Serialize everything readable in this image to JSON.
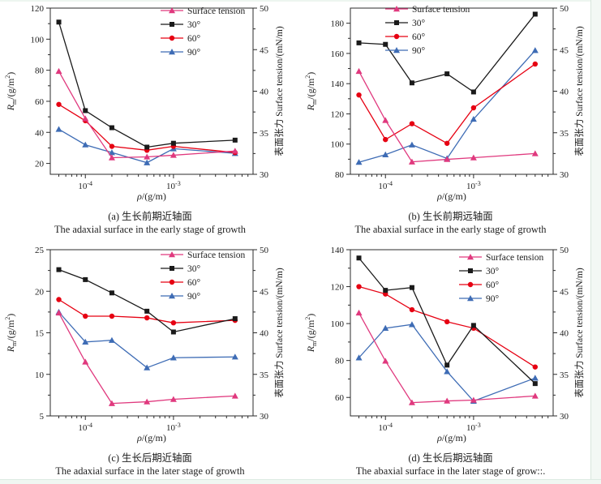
{
  "figure": {
    "x_range": [
      4e-05,
      0.008
    ],
    "x_ticks": [
      {
        "value": 0.0001,
        "base": "10",
        "exp": "-4"
      },
      {
        "value": 0.001,
        "base": "10",
        "exp": "-3"
      }
    ],
    "xlabel": {
      "var": "ρ",
      "rest": "/(g/m)"
    },
    "left_label": {
      "var": "R",
      "sub": "m",
      "mid": "/(g/m",
      "sup": "2",
      "end": ")"
    },
    "right_label": "表面张力 Surface tension/(mN/m)",
    "right_ticks": [
      30,
      35,
      40,
      45,
      50
    ],
    "right_range": [
      30,
      50
    ],
    "series_styles": {
      "surface_tension": {
        "color": "#E0397E",
        "marker": "triangle"
      },
      "deg30": {
        "color": "#1A1A1A",
        "marker": "square"
      },
      "deg60": {
        "color": "#E60012",
        "marker": "circle"
      },
      "deg90": {
        "color": "#3E6CB5",
        "marker": "triangle"
      }
    },
    "draw_order": [
      "deg90",
      "deg60",
      "surface_tension",
      "deg30"
    ],
    "legend": {
      "entries": [
        {
          "key": "surface_tension",
          "label": "Surface tension"
        },
        {
          "key": "deg30",
          "label": "30°"
        },
        {
          "key": "deg60",
          "label": "60°"
        },
        {
          "key": "deg90",
          "label": "90°"
        }
      ]
    }
  },
  "chart_data": [
    {
      "type": "line",
      "panel": "a",
      "title_zh": "(a) 生长前期近轴面",
      "title_en": "The adaxial surface in the early stage of growth",
      "x_scale": "log",
      "x": [
        5e-05,
        0.0001,
        0.0002,
        0.0005,
        0.001,
        0.005
      ],
      "left_ticks": [
        20,
        40,
        60,
        80,
        100,
        120
      ],
      "left_range": [
        13,
        120
      ],
      "legend_pos": {
        "x": 198,
        "y": 8
      },
      "series": {
        "surface_tension": {
          "axis": "right",
          "values": [
            42.4,
            36.7,
            32.0,
            32.1,
            32.3,
            32.8
          ]
        },
        "deg30": {
          "axis": "left",
          "values": [
            111,
            54,
            43,
            30.5,
            33,
            35
          ]
        },
        "deg60": {
          "axis": "left",
          "values": [
            58,
            47.5,
            31,
            28.5,
            31,
            27
          ]
        },
        "deg90": {
          "axis": "left",
          "values": [
            42,
            32,
            27,
            20.5,
            29.5,
            26.5
          ]
        }
      }
    },
    {
      "type": "line",
      "panel": "b",
      "title_zh": "(b) 生长前期远轴面",
      "title_en": "The abaxial surface in the early stage of growth",
      "x_scale": "log",
      "x": [
        5e-05,
        0.0001,
        0.0002,
        0.0005,
        0.001,
        0.005
      ],
      "left_ticks": [
        80,
        100,
        120,
        140,
        160,
        180
      ],
      "left_range": [
        80,
        190
      ],
      "legend_pos": {
        "x": 105,
        "y": 6
      },
      "series": {
        "surface_tension": {
          "axis": "right",
          "values": [
            42.4,
            36.5,
            31.5,
            31.8,
            32.0,
            32.5
          ]
        },
        "deg30": {
          "axis": "left",
          "values": [
            167,
            166,
            140.5,
            146.5,
            134.5,
            186
          ]
        },
        "deg60": {
          "axis": "left",
          "values": [
            132.5,
            103,
            113.5,
            100.5,
            124,
            153
          ]
        },
        "deg90": {
          "axis": "left",
          "values": [
            88,
            93,
            99.5,
            90.5,
            116.5,
            162
          ]
        }
      }
    },
    {
      "type": "line",
      "panel": "c",
      "title_zh": "(c) 生长后期近轴面",
      "title_en": "The adaxial surface in the later stage of growth",
      "x_scale": "log",
      "x": [
        5e-05,
        0.0001,
        0.0002,
        0.0005,
        0.001,
        0.005
      ],
      "left_ticks": [
        5,
        10,
        15,
        20,
        25
      ],
      "left_range": [
        5,
        25
      ],
      "legend_pos": {
        "x": 198,
        "y": 11
      },
      "series": {
        "surface_tension": {
          "axis": "right",
          "values": [
            42.4,
            36.5,
            31.5,
            31.7,
            32.0,
            32.4
          ]
        },
        "deg30": {
          "axis": "left",
          "values": [
            22.6,
            21.4,
            19.8,
            17.6,
            15.1,
            16.7
          ]
        },
        "deg60": {
          "axis": "left",
          "values": [
            19.0,
            17.0,
            17.0,
            16.8,
            16.2,
            16.5
          ]
        },
        "deg90": {
          "axis": "left",
          "values": [
            17.5,
            13.9,
            14.1,
            10.8,
            12.0,
            12.1
          ]
        }
      }
    },
    {
      "type": "line",
      "panel": "d",
      "title_zh": "(d) 生长后期远轴面",
      "title_en": "The abaxial surface in the later stage of grow::.",
      "x_scale": "log",
      "x": [
        5e-05,
        0.0001,
        0.0002,
        0.0005,
        0.001,
        0.005
      ],
      "left_ticks": [
        60,
        80,
        100,
        120,
        140
      ],
      "left_range": [
        50,
        140
      ],
      "legend_pos": {
        "x": 196,
        "y": 14
      },
      "series": {
        "surface_tension": {
          "axis": "right",
          "values": [
            42.4,
            36.6,
            31.6,
            31.8,
            31.9,
            32.4
          ]
        },
        "deg30": {
          "axis": "left",
          "values": [
            135.5,
            118,
            119.5,
            77.5,
            99,
            67.5
          ]
        },
        "deg60": {
          "axis": "left",
          "values": [
            120,
            116,
            107.5,
            101,
            97.5,
            76.5
          ]
        },
        "deg90": {
          "axis": "left",
          "values": [
            81.5,
            97.5,
            99.5,
            74,
            58,
            70.5
          ]
        }
      }
    }
  ]
}
